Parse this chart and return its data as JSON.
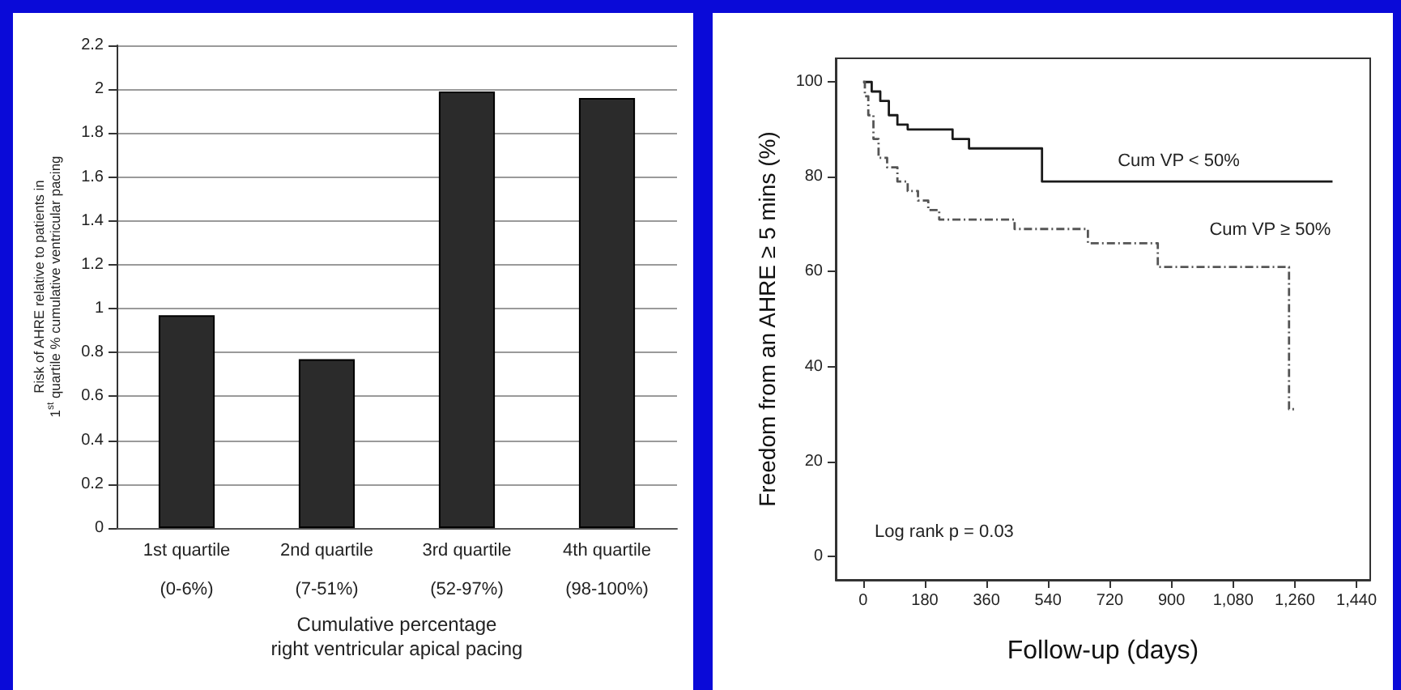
{
  "chart_data": [
    {
      "type": "bar",
      "categories": [
        "1st quartile\n\n(0-6%)",
        "2nd quartile\n\n(7-51%)",
        "3rd quartile\n\n(52-97%)",
        "4th quartile\n\n(98-100%)"
      ],
      "values": [
        0.97,
        0.77,
        1.99,
        1.96
      ],
      "color": "#2b2b2b",
      "xlabel": "Cumulative percentage\nright ventricular apical pacing",
      "ylabel": "Risk of AHRE relative to patients in\n1$^{st}$ quartile % cumulative ventricular pacing",
      "ylim": [
        0,
        2.2
      ],
      "yticks": [
        0,
        0.2,
        0.4,
        0.6,
        0.8,
        1,
        1.2,
        1.4,
        1.6,
        1.8,
        2,
        2.2
      ],
      "grid": "y"
    },
    {
      "type": "step",
      "xlabel": "Follow-up (days)",
      "ylabel": "Freedom from an AHRE ≥ 5 mins (%)",
      "xlim": [
        -80,
        1480
      ],
      "xticks": [
        0,
        180,
        360,
        540,
        720,
        900,
        {
          "value": 1080,
          "label": "1,080"
        },
        {
          "value": 1260,
          "label": "1,260"
        },
        {
          "value": 1440,
          "label": "1,440"
        }
      ],
      "ylim": [
        -5,
        105
      ],
      "yticks": [
        0,
        20,
        40,
        60,
        80,
        100
      ],
      "grid": false,
      "legend": false,
      "annotations": [
        "Log rank p = 0.03"
      ],
      "series": [
        {
          "name": "Cum VP < 50%",
          "color": "#1a1a1a",
          "line_style": "solid",
          "x": [
            0,
            25,
            50,
            75,
            100,
            130,
            261,
            309,
            522,
            1370
          ],
          "values": [
            100,
            98,
            96,
            93,
            91,
            90,
            88,
            86,
            79,
            79
          ]
        },
        {
          "name": "Cum VP ≥ 50%",
          "color": "#555555",
          "line_style": "dashed",
          "x": [
            0,
            5,
            15,
            30,
            45,
            70,
            100,
            130,
            160,
            190,
            222,
            442,
            656,
            860,
            1243,
            1262
          ],
          "values": [
            100,
            97,
            93,
            88,
            84,
            82,
            79,
            77,
            75,
            73,
            71,
            69,
            66,
            61,
            31,
            31
          ]
        }
      ]
    }
  ]
}
